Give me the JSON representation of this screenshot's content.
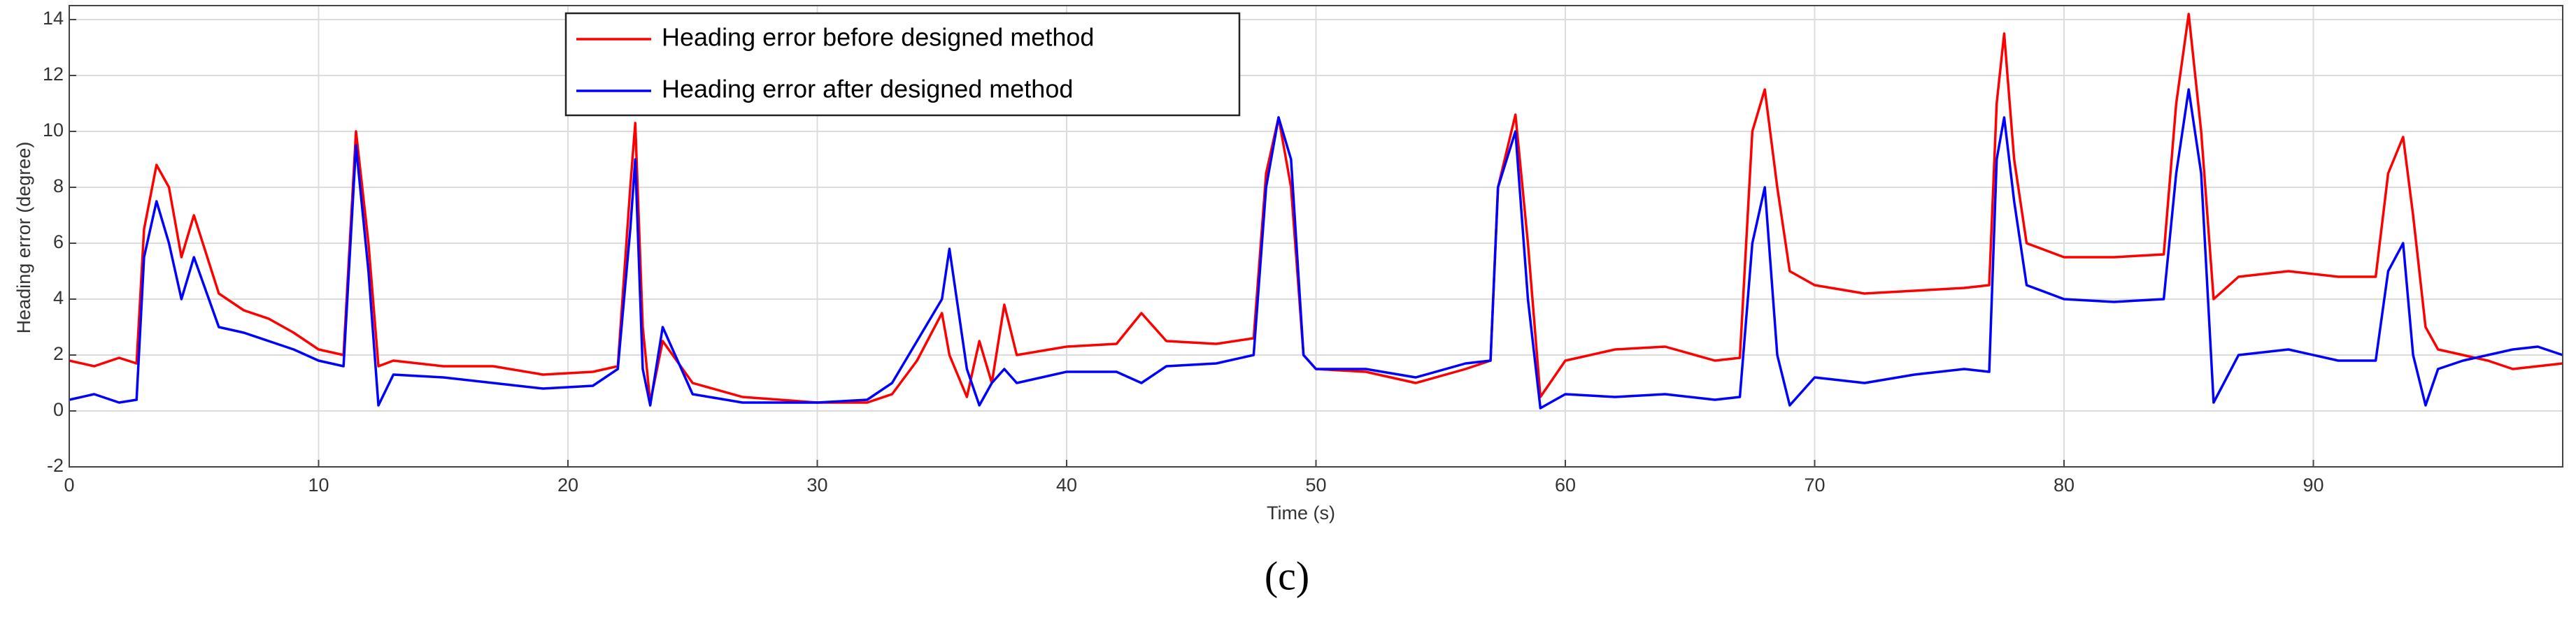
{
  "chart_data": {
    "type": "line",
    "xlabel": "Time (s)",
    "ylabel": "Heading error (degree)",
    "caption": "(c)",
    "x": [
      0,
      1,
      2,
      2.7,
      3,
      3.5,
      4,
      4.5,
      5,
      6,
      7,
      8,
      9,
      10,
      11,
      11.5,
      12,
      12.4,
      13,
      15,
      17,
      19,
      21,
      22,
      22.5,
      22.7,
      23,
      23.3,
      23.8,
      25,
      27,
      30,
      32,
      33,
      34,
      35,
      35.3,
      36,
      36.5,
      37,
      37.5,
      38,
      40,
      42,
      43,
      44,
      46,
      47.5,
      48,
      48.5,
      49,
      49.5,
      50,
      52,
      54,
      56,
      57,
      57.3,
      58,
      58.5,
      59,
      60,
      62,
      64,
      66,
      67,
      67.5,
      68,
      68.5,
      69,
      70,
      72,
      74,
      76,
      77,
      77.3,
      77.6,
      78,
      78.5,
      80,
      82,
      84,
      84.5,
      85,
      85.5,
      86,
      87,
      89,
      91,
      92.5,
      93,
      93.6,
      94,
      94.5,
      95,
      96,
      97,
      98,
      99,
      100
    ],
    "series": [
      {
        "name": "Heading error before designed method",
        "color": "#ff0000",
        "values": [
          1.8,
          1.6,
          1.9,
          1.7,
          6.5,
          8.8,
          8.0,
          5.5,
          7.0,
          4.2,
          3.6,
          3.3,
          2.8,
          2.2,
          2.0,
          10.0,
          6.0,
          1.6,
          1.8,
          1.6,
          1.6,
          1.3,
          1.4,
          1.6,
          8.0,
          10.3,
          3.0,
          0.3,
          2.5,
          1.0,
          0.5,
          0.3,
          0.3,
          0.6,
          1.8,
          3.5,
          2.0,
          0.5,
          2.5,
          1.0,
          3.8,
          2.0,
          2.3,
          2.4,
          3.5,
          2.5,
          2.4,
          2.6,
          8.5,
          10.5,
          8.0,
          2.0,
          1.5,
          1.4,
          1.0,
          1.5,
          1.8,
          8.0,
          10.6,
          6.0,
          0.5,
          1.8,
          2.2,
          2.3,
          1.8,
          1.9,
          10.0,
          11.5,
          8.0,
          5.0,
          4.5,
          4.2,
          4.3,
          4.4,
          4.5,
          11.0,
          13.5,
          9.0,
          6.0,
          5.5,
          5.5,
          5.6,
          11.0,
          14.2,
          10.0,
          4.0,
          4.8,
          5.0,
          4.8,
          4.8,
          8.5,
          9.8,
          7.0,
          3.0,
          2.2,
          2.0,
          1.8,
          1.5,
          1.6,
          1.7
        ]
      },
      {
        "name": "Heading error after designed method",
        "color": "#0000ff",
        "values": [
          0.4,
          0.6,
          0.3,
          0.4,
          5.5,
          7.5,
          6.0,
          4.0,
          5.5,
          3.0,
          2.8,
          2.5,
          2.2,
          1.8,
          1.6,
          9.5,
          5.0,
          0.2,
          1.3,
          1.2,
          1.0,
          0.8,
          0.9,
          1.5,
          6.5,
          9.0,
          1.5,
          0.2,
          3.0,
          0.6,
          0.3,
          0.3,
          0.4,
          1.0,
          2.5,
          4.0,
          5.8,
          1.5,
          0.2,
          1.0,
          1.5,
          1.0,
          1.4,
          1.4,
          1.0,
          1.6,
          1.7,
          2.0,
          8.0,
          10.5,
          9.0,
          2.0,
          1.5,
          1.5,
          1.2,
          1.7,
          1.8,
          8.0,
          10.0,
          4.0,
          0.1,
          0.6,
          0.5,
          0.6,
          0.4,
          0.5,
          6.0,
          8.0,
          2.0,
          0.2,
          1.2,
          1.0,
          1.3,
          1.5,
          1.4,
          9.0,
          10.5,
          7.5,
          4.5,
          4.0,
          3.9,
          4.0,
          8.5,
          11.5,
          8.5,
          0.3,
          2.0,
          2.2,
          1.8,
          1.8,
          5.0,
          6.0,
          2.0,
          0.2,
          1.5,
          1.8,
          2.0,
          2.2,
          2.3,
          2.0
        ]
      }
    ],
    "xlim": [
      0,
      100
    ],
    "ylim": [
      -2,
      14.5
    ],
    "xticks": [
      0,
      10,
      20,
      30,
      40,
      50,
      60,
      70,
      80,
      90
    ],
    "yticks": [
      -2,
      0,
      2,
      4,
      6,
      8,
      10,
      12,
      14
    ],
    "grid": true,
    "legend": "top"
  }
}
